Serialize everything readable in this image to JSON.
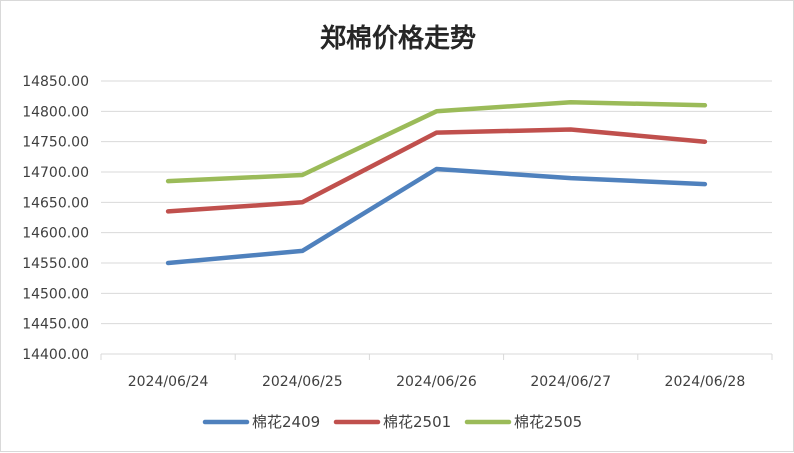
{
  "chart_data": {
    "type": "line",
    "title": "郑棉价格走势",
    "xlabel": "",
    "ylabel": "",
    "categories": [
      "2024/06/24",
      "2024/06/25",
      "2024/06/26",
      "2024/06/27",
      "2024/06/28"
    ],
    "y_ticks": [
      "14400.00",
      "14450.00",
      "14500.00",
      "14550.00",
      "14600.00",
      "14650.00",
      "14700.00",
      "14750.00",
      "14800.00",
      "14850.00"
    ],
    "ylim": [
      14400,
      14850
    ],
    "grid": true,
    "legend_position": "bottom",
    "series": [
      {
        "name": "棉花2409",
        "color": "#4f81bd",
        "values": [
          14550,
          14570,
          14705,
          14690,
          14680
        ]
      },
      {
        "name": "棉花2501",
        "color": "#c0504d",
        "values": [
          14635,
          14650,
          14765,
          14770,
          14750
        ]
      },
      {
        "name": "棉花2505",
        "color": "#9bbb59",
        "values": [
          14685,
          14695,
          14800,
          14815,
          14810
        ]
      }
    ]
  }
}
